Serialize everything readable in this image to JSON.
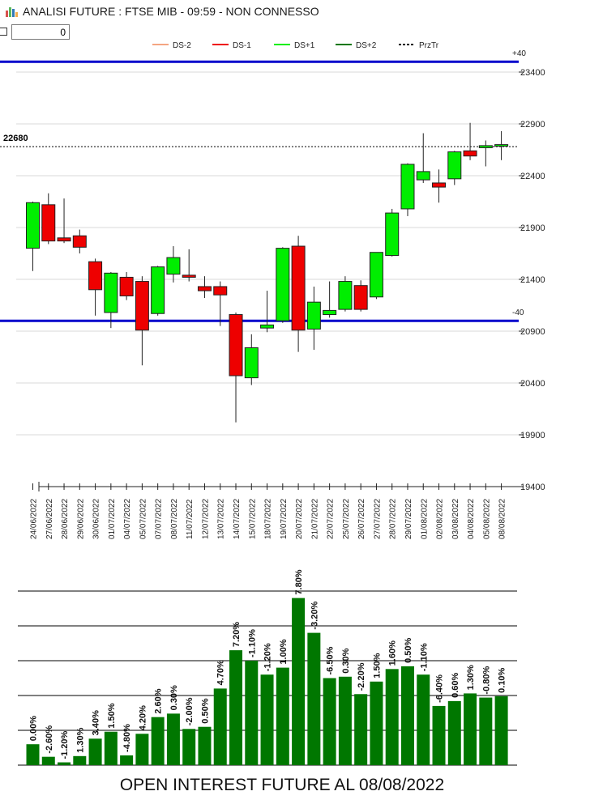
{
  "window": {
    "title": "ANALISI FUTURE : FTSE MIB - 09:59 - NON CONNESSO"
  },
  "toolbar": {
    "input_value": "0"
  },
  "colors": {
    "up": "#00ee00",
    "down": "#ee0000",
    "level_line": "#0000cc",
    "bar": "#007700",
    "grid": "#000000"
  },
  "chart_data": [
    {
      "type": "candlestick",
      "legend": [
        {
          "label": "DS-2",
          "color": "#f4a582",
          "style": "solid"
        },
        {
          "label": "DS-1",
          "color": "#ee0000",
          "style": "solid"
        },
        {
          "label": "DS+1",
          "color": "#00ee00",
          "style": "solid"
        },
        {
          "label": "DS+2",
          "color": "#007700",
          "style": "solid"
        },
        {
          "label": "PrzTr",
          "color": "#000000",
          "style": "dashed"
        }
      ],
      "legend_position": "top",
      "ylim": [
        19400,
        23700
      ],
      "yticks": [
        "23400",
        "22900",
        "22400",
        "21900",
        "21400",
        "20900",
        "20400",
        "19900",
        "19400"
      ],
      "ytick_values": [
        23400,
        22900,
        22400,
        21900,
        21400,
        20900,
        20400,
        19900,
        19400
      ],
      "levels": [
        {
          "label": "+40",
          "value": 23500
        },
        {
          "label": "-40",
          "value": 21000
        }
      ],
      "last_price": {
        "label": "22680",
        "value": 22680
      },
      "candles": [
        {
          "date": "24/06/2022",
          "o": 21700,
          "h": 22150,
          "l": 21480,
          "c": 22140
        },
        {
          "date": "27/06/2022",
          "o": 22120,
          "h": 22230,
          "l": 21740,
          "c": 21770
        },
        {
          "date": "28/06/2022",
          "o": 21800,
          "h": 22180,
          "l": 21750,
          "c": 21770
        },
        {
          "date": "29/06/2022",
          "o": 21820,
          "h": 21880,
          "l": 21650,
          "c": 21710
        },
        {
          "date": "30/06/2022",
          "o": 21570,
          "h": 21600,
          "l": 21050,
          "c": 21300
        },
        {
          "date": "01/07/2022",
          "o": 21080,
          "h": 21470,
          "l": 20930,
          "c": 21460
        },
        {
          "date": "04/07/2022",
          "o": 21420,
          "h": 21470,
          "l": 21200,
          "c": 21240
        },
        {
          "date": "05/07/2022",
          "o": 21380,
          "h": 21430,
          "l": 20570,
          "c": 20910
        },
        {
          "date": "07/07/2022",
          "o": 21070,
          "h": 21530,
          "l": 21050,
          "c": 21520
        },
        {
          "date": "08/07/2022",
          "o": 21450,
          "h": 21720,
          "l": 21370,
          "c": 21610
        },
        {
          "date": "11/07/2022",
          "o": 21440,
          "h": 21690,
          "l": 21380,
          "c": 21420
        },
        {
          "date": "12/07/2022",
          "o": 21330,
          "h": 21430,
          "l": 21220,
          "c": 21290
        },
        {
          "date": "13/07/2022",
          "o": 21330,
          "h": 21380,
          "l": 20950,
          "c": 21250
        },
        {
          "date": "14/07/2022",
          "o": 21060,
          "h": 21080,
          "l": 20020,
          "c": 20470
        },
        {
          "date": "15/07/2022",
          "o": 20450,
          "h": 20870,
          "l": 20380,
          "c": 20740
        },
        {
          "date": "18/07/2022",
          "o": 20930,
          "h": 21290,
          "l": 20890,
          "c": 20960
        },
        {
          "date": "19/07/2022",
          "o": 21000,
          "h": 21710,
          "l": 20980,
          "c": 21700
        },
        {
          "date": "20/07/2022",
          "o": 21720,
          "h": 21820,
          "l": 20700,
          "c": 20910
        },
        {
          "date": "21/07/2022",
          "o": 20920,
          "h": 21330,
          "l": 20720,
          "c": 21180
        },
        {
          "date": "22/07/2022",
          "o": 21060,
          "h": 21380,
          "l": 21030,
          "c": 21100
        },
        {
          "date": "25/07/2022",
          "o": 21110,
          "h": 21430,
          "l": 21090,
          "c": 21380
        },
        {
          "date": "26/07/2022",
          "o": 21340,
          "h": 21390,
          "l": 21090,
          "c": 21110
        },
        {
          "date": "27/07/2022",
          "o": 21230,
          "h": 21660,
          "l": 21210,
          "c": 21660
        },
        {
          "date": "28/07/2022",
          "o": 21630,
          "h": 22080,
          "l": 21620,
          "c": 22040
        },
        {
          "date": "29/07/2022",
          "o": 22080,
          "h": 22520,
          "l": 22010,
          "c": 22510
        },
        {
          "date": "01/08/2022",
          "o": 22360,
          "h": 22810,
          "l": 22330,
          "c": 22440
        },
        {
          "date": "02/08/2022",
          "o": 22330,
          "h": 22460,
          "l": 22140,
          "c": 22290
        },
        {
          "date": "03/08/2022",
          "o": 22370,
          "h": 22640,
          "l": 22310,
          "c": 22630
        },
        {
          "date": "04/08/2022",
          "o": 22640,
          "h": 22910,
          "l": 22550,
          "c": 22590
        },
        {
          "date": "05/08/2022",
          "o": 22670,
          "h": 22740,
          "l": 22490,
          "c": 22690
        },
        {
          "date": "08/08/2022",
          "o": 22690,
          "h": 22830,
          "l": 22550,
          "c": 22700
        }
      ]
    },
    {
      "type": "bar",
      "title": "OPEN INTEREST FUTURE AL 08/08/2022",
      "categories": [
        "24/06/2022",
        "27/06/2022",
        "28/06/2022",
        "29/06/2022",
        "30/06/2022",
        "01/07/2022",
        "04/07/2022",
        "05/07/2022",
        "07/07/2022",
        "08/07/2022",
        "11/07/2022",
        "12/07/2022",
        "13/07/2022",
        "14/07/2022",
        "15/07/2022",
        "18/07/2022",
        "19/07/2022",
        "20/07/2022",
        "21/07/2022",
        "22/07/2022",
        "25/07/2022",
        "26/07/2022",
        "27/07/2022",
        "28/07/2022",
        "29/07/2022",
        "01/08/2022",
        "02/08/2022",
        "03/08/2022",
        "04/08/2022",
        "05/08/2022",
        "08/08/2022"
      ],
      "values": [
        30,
        12,
        4,
        13,
        38,
        48,
        14,
        45,
        69,
        74,
        52,
        55,
        110,
        165,
        150,
        130,
        140,
        240,
        190,
        125,
        127,
        102,
        120,
        138,
        142,
        130,
        85,
        92,
        103,
        97,
        99
      ],
      "value_labels": [
        "0.00%",
        "-2.60%",
        "-1.20%",
        "1.30%",
        "3.40%",
        "1.50%",
        "-4.80%",
        "4.20%",
        "2.60%",
        "0.30%",
        "-2.00%",
        "0.50%",
        "4.70%",
        "7.20%",
        "-1.10%",
        "-1.20%",
        "1.00%",
        "7.80%",
        "-3.20%",
        "-6.50%",
        "0.30%",
        "-2.20%",
        "1.50%",
        "1.60%",
        "0.50%",
        "-1.10%",
        "-6.40%",
        "0.60%",
        "1.30%",
        "-0.80%",
        "0.10%"
      ],
      "ylim": [
        0,
        250
      ],
      "grid": true
    }
  ]
}
